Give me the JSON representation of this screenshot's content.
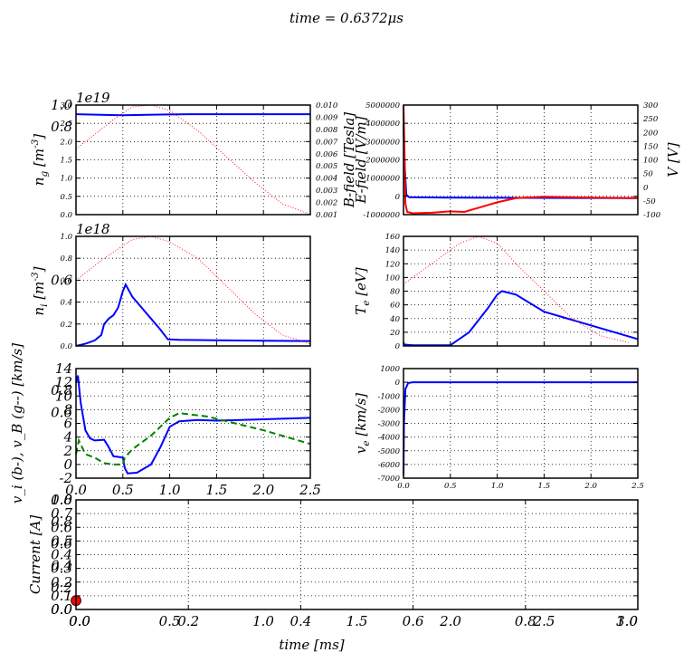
{
  "suptitle": "time = 0.6372μs",
  "colors": {
    "blue": "#0000ff",
    "red": "#ff0000",
    "green": "#008000",
    "marker": "#ff0000"
  },
  "chart_data": [
    {
      "id": "ng",
      "type": "line",
      "multiplier": "1e19",
      "ylabel": "n_g [m^{-3}]",
      "xlim": [
        0,
        2.5
      ],
      "ylim": [
        0,
        3.0
      ],
      "yticks": [
        "0.0",
        "0.5",
        "1.0",
        "1.5",
        "2.0",
        "2.5",
        "3.0"
      ],
      "y2lim": [
        0.001,
        0.01
      ],
      "y2ticks": [
        "0.001",
        "0.002",
        "0.003",
        "0.004",
        "0.005",
        "0.006",
        "0.007",
        "0.008",
        "0.009",
        "0.010"
      ],
      "overlay_ticks": {
        "y": [
          "0.8",
          "1.0"
        ]
      },
      "series": [
        {
          "color": "blue",
          "style": "solid",
          "x": [
            0,
            0.5,
            0.9,
            1.2,
            2.5
          ],
          "y": [
            2.75,
            2.72,
            2.74,
            2.75,
            2.75
          ]
        },
        {
          "color": "red",
          "style": "dotted",
          "x": [
            0,
            0.2,
            0.4,
            0.6,
            0.8,
            1.0,
            1.3,
            1.6,
            1.9,
            2.2,
            2.5
          ],
          "y": [
            1.8,
            2.2,
            2.6,
            2.95,
            3.0,
            2.85,
            2.3,
            1.6,
            0.9,
            0.3,
            0.0
          ]
        }
      ]
    },
    {
      "id": "efield",
      "type": "line",
      "ylabel": "E-field [V/m]",
      "ylabel2": "B-field [Tesla]",
      "y2label": "V [V]",
      "xlim": [
        0,
        2.5
      ],
      "ylim": [
        -1000000,
        5000000
      ],
      "yticks": [
        "-1000000",
        "0",
        "1000000",
        "2000000",
        "3000000",
        "4000000",
        "5000000"
      ],
      "y2lim": [
        -100,
        300
      ],
      "y2ticks": [
        "-100",
        "-50",
        "0",
        "50",
        "100",
        "150",
        "200",
        "250",
        "300"
      ],
      "series": [
        {
          "color": "blue",
          "style": "solid",
          "x": [
            0,
            0.01,
            0.03,
            0.06,
            0.5,
            1.0,
            2.5
          ],
          "y": [
            4000000,
            2000000,
            100000,
            -50000,
            -70000,
            -80000,
            -100000
          ]
        },
        {
          "color": "red",
          "style": "solid",
          "axis": "y2",
          "x": [
            0,
            0.01,
            0.02,
            0.04,
            0.1,
            0.3,
            0.5,
            0.65,
            0.8,
            1.0,
            1.2,
            1.5,
            2.0,
            2.5
          ],
          "y": [
            300,
            150,
            -60,
            -90,
            -95,
            -93,
            -88,
            -90,
            -75,
            -55,
            -40,
            -35,
            -38,
            -40
          ]
        }
      ]
    },
    {
      "id": "ni",
      "type": "line",
      "multiplier": "1e18",
      "ylabel": "n_i [m^{-3}]",
      "xlim": [
        0,
        2.5
      ],
      "ylim": [
        0,
        1.0
      ],
      "yticks": [
        "0.0",
        "0.2",
        "0.4",
        "0.6",
        "0.8",
        "1.0"
      ],
      "overlay_ticks": {
        "y": [
          "0.6"
        ]
      },
      "series": [
        {
          "color": "blue",
          "style": "solid",
          "x": [
            0,
            0.1,
            0.2,
            0.27,
            0.3,
            0.35,
            0.4,
            0.45,
            0.5,
            0.53,
            0.6,
            0.7,
            0.8,
            0.9,
            0.98,
            1.1,
            1.5,
            2.0,
            2.5
          ],
          "y": [
            0,
            0.02,
            0.05,
            0.1,
            0.2,
            0.25,
            0.28,
            0.35,
            0.5,
            0.56,
            0.45,
            0.35,
            0.25,
            0.15,
            0.06,
            0.055,
            0.052,
            0.048,
            0.045
          ]
        },
        {
          "color": "red",
          "style": "dotted",
          "x": [
            0,
            0.3,
            0.6,
            0.8,
            1.0,
            1.3,
            1.6,
            1.9,
            2.2,
            2.5
          ],
          "y": [
            0.6,
            0.8,
            0.97,
            1.0,
            0.95,
            0.8,
            0.55,
            0.3,
            0.1,
            0.02
          ]
        }
      ]
    },
    {
      "id": "te",
      "type": "line",
      "ylabel": "T_e [eV]",
      "xlim": [
        0,
        2.5
      ],
      "ylim": [
        0,
        160
      ],
      "yticks": [
        "0",
        "20",
        "40",
        "60",
        "80",
        "100",
        "120",
        "140",
        "160"
      ],
      "series": [
        {
          "color": "blue",
          "style": "solid",
          "x": [
            0,
            0.01,
            0.1,
            0.3,
            0.5,
            0.7,
            0.9,
            1.0,
            1.05,
            1.2,
            1.5,
            2.0,
            2.5
          ],
          "y": [
            5,
            2,
            1,
            1,
            1,
            20,
            55,
            75,
            80,
            75,
            50,
            30,
            10
          ]
        },
        {
          "color": "red",
          "style": "dotted",
          "x": [
            0,
            0.3,
            0.6,
            0.8,
            1.0,
            1.2,
            1.5,
            1.8,
            2.1,
            2.4
          ],
          "y": [
            90,
            120,
            150,
            160,
            150,
            120,
            80,
            40,
            15,
            5
          ]
        }
      ]
    },
    {
      "id": "vi",
      "type": "line",
      "ylabel": "v_i (b-), v_B (g--) [km/s]",
      "xlim": [
        0,
        2.5
      ],
      "ylim": [
        -2,
        14
      ],
      "xticks": [
        "0.0",
        "0.5",
        "1.0",
        "1.5",
        "2.0",
        "2.5"
      ],
      "yticks": [
        "-2",
        "0",
        "2",
        "4",
        "6",
        "8",
        "10",
        "12",
        "14"
      ],
      "overlay_ticks": {
        "y": [
          "0.6",
          "0.8"
        ]
      },
      "series": [
        {
          "color": "blue",
          "style": "solid",
          "x": [
            0,
            0.02,
            0.05,
            0.1,
            0.15,
            0.2,
            0.3,
            0.35,
            0.4,
            0.5,
            0.52,
            0.55,
            0.65,
            0.8,
            0.9,
            1.0,
            1.1,
            1.3,
            1.5,
            2.0,
            2.5
          ],
          "y": [
            12,
            13,
            9,
            5,
            3.8,
            3.5,
            3.6,
            2.5,
            1.2,
            1.0,
            -0.5,
            -1.3,
            -1.2,
            0,
            2.5,
            5.5,
            6.3,
            6.5,
            6.4,
            6.6,
            6.8
          ]
        },
        {
          "color": "green",
          "style": "dashed",
          "x": [
            0,
            0.03,
            0.1,
            0.2,
            0.3,
            0.4,
            0.5,
            0.52,
            0.6,
            0.8,
            1.0,
            1.1,
            1.4,
            1.7,
            2.0,
            2.5
          ],
          "y": [
            1.5,
            3.5,
            1.5,
            1.0,
            0.2,
            0.0,
            0.0,
            1.0,
            2.2,
            4.2,
            6.8,
            7.5,
            7.0,
            6.0,
            5.0,
            3.0
          ]
        }
      ]
    },
    {
      "id": "ve",
      "type": "line",
      "ylabel": "v_e [km/s]",
      "xlim": [
        0,
        2.5
      ],
      "ylim": [
        -7000,
        1000
      ],
      "xticks": [
        "0.0",
        "0.5",
        "1.0",
        "1.5",
        "2.0",
        "2.5"
      ],
      "yticks": [
        "-7000",
        "-6000",
        "-5000",
        "-4000",
        "-3000",
        "-2000",
        "-1000",
        "0",
        "1000"
      ],
      "series": [
        {
          "color": "blue",
          "style": "solid",
          "x": [
            0,
            0.005,
            0.02,
            0.05,
            0.1,
            2.5
          ],
          "y": [
            -6800,
            -3000,
            -500,
            -50,
            0,
            0
          ]
        }
      ]
    },
    {
      "id": "current",
      "type": "scatter",
      "ylabel": "Current [A]",
      "xlabel": "time [ms]",
      "xlim": [
        0,
        1.0
      ],
      "ylim": [
        0,
        0.8
      ],
      "xticks": [
        "0.0",
        "0.2",
        "0.4",
        "0.6",
        "0.8",
        "1.0"
      ],
      "xticks_overlay": [
        "0.0",
        "0.5",
        "1.0",
        "1.5",
        "2.0",
        "2.5",
        "3.0"
      ],
      "yticks": [
        "0.0",
        "0.1",
        "0.2",
        "0.3",
        "0.4",
        "0.5",
        "0.6",
        "0.7",
        "0.8"
      ],
      "overlay_ticks": {
        "y": [
          "0.0",
          "0.2",
          "0.4",
          "0.6",
          "0.8",
          "1.0"
        ]
      },
      "points": [
        {
          "x": 0.0,
          "y": 0.065,
          "color": "marker"
        }
      ]
    }
  ]
}
